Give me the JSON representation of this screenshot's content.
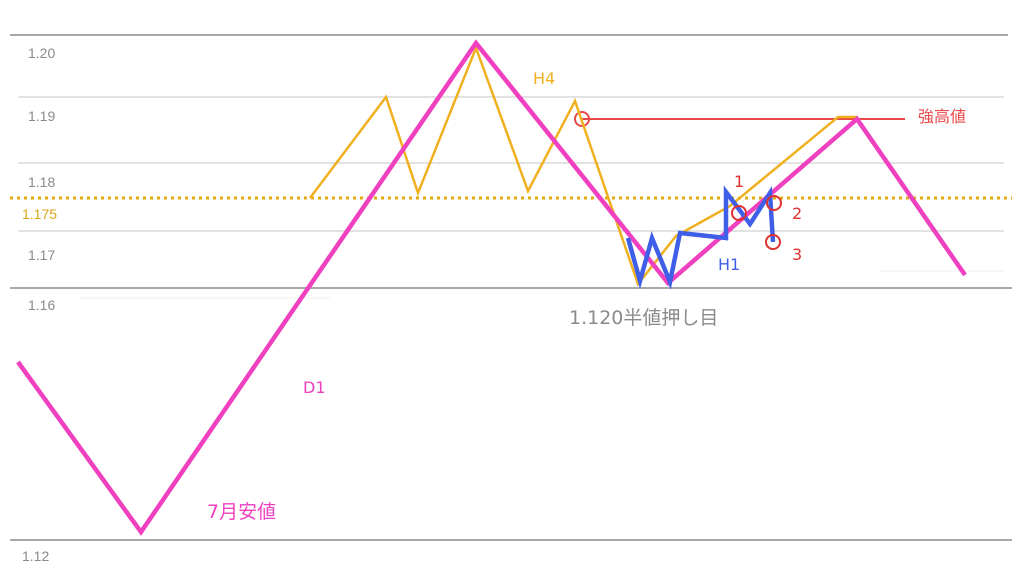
{
  "levels": {
    "l120": "1.20",
    "l119": "1.19",
    "l118": "1.18",
    "l1175": "1.175",
    "l117": "1.17",
    "l116": "1.16",
    "l112": "1.12"
  },
  "labels": {
    "h4": "H4",
    "d1": "D1",
    "h1": "H1",
    "strong_high": "強高値",
    "half_pullback": "1.120半値押し目",
    "july_low": "7月安値",
    "mark1": "1",
    "mark2": "2",
    "mark3": "3"
  },
  "colors": {
    "d1": "#ef40c0",
    "h4": "#f0b020",
    "h1": "#3f5fe8",
    "strong_high": "#e84848",
    "marker": "#e03030",
    "level_text": "#8a8a8a",
    "level_1175": "#d9a514",
    "grid": "#b8b8b8"
  }
}
